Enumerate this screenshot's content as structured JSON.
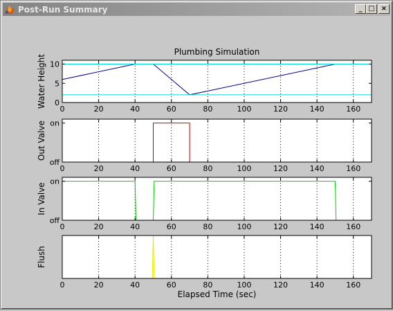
{
  "window": {
    "title": "Post-Run Summary",
    "minimize_label": "_",
    "maximize_label": "□",
    "close_label": "×"
  },
  "colors": {
    "background": "#c8c8c8",
    "axes_bg": "#ffffff",
    "water_line": "#00008b",
    "threshold_line": "#00d8e0",
    "out_valve": "#c00000",
    "in_valve": "#00d000",
    "flush": "#e8e800"
  },
  "chart_data": [
    {
      "type": "line",
      "title": "Plumbing Simulation",
      "xlabel": "",
      "ylabel": "Water Height",
      "xlim": [
        0,
        170
      ],
      "ylim": [
        0,
        11
      ],
      "xticks": [
        0,
        20,
        40,
        60,
        80,
        100,
        120,
        140,
        160
      ],
      "yticks": [
        0,
        5,
        10
      ],
      "xgrid": true,
      "series": [
        {
          "x": [
            0,
            40,
            50,
            70,
            150,
            170
          ],
          "y": [
            6,
            10,
            10,
            2,
            10,
            10
          ],
          "color_key": "water_line"
        },
        {
          "x": [
            0,
            170
          ],
          "y": [
            10,
            10
          ],
          "color_key": "threshold_line"
        },
        {
          "x": [
            0,
            170
          ],
          "y": [
            2,
            2
          ],
          "color_key": "threshold_line"
        }
      ]
    },
    {
      "type": "line",
      "title": "",
      "xlabel": "",
      "ylabel": "Out Valve",
      "xlim": [
        0,
        170
      ],
      "ylim": [
        0,
        1.1
      ],
      "xticks": [
        0,
        20,
        40,
        60,
        80,
        100,
        120,
        140,
        160
      ],
      "yticks": [
        0,
        1
      ],
      "ytick_labels": [
        "off",
        "on"
      ],
      "xgrid": true,
      "series": [
        {
          "x": [
            0,
            50,
            50,
            70,
            70,
            170
          ],
          "y": [
            0,
            0,
            1,
            1,
            0,
            0
          ],
          "color_key": "out_valve"
        }
      ]
    },
    {
      "type": "line",
      "title": "",
      "xlabel": "",
      "ylabel": "In Valve",
      "xlim": [
        0,
        170
      ],
      "ylim": [
        0,
        1.1
      ],
      "xticks": [
        0,
        20,
        40,
        60,
        80,
        100,
        120,
        140,
        160
      ],
      "yticks": [
        0,
        1
      ],
      "ytick_labels": [
        "off",
        "on"
      ],
      "xgrid": true,
      "series": [
        {
          "x": [
            0,
            40,
            40.5,
            50,
            50.5,
            150,
            150.5,
            170
          ],
          "y": [
            1,
            1,
            0,
            0,
            1,
            1,
            0,
            0
          ],
          "color_key": "in_valve"
        }
      ]
    },
    {
      "type": "line",
      "title": "",
      "xlabel": "Elapsed Time (sec)",
      "ylabel": "Flush",
      "xlim": [
        0,
        170
      ],
      "ylim": [
        0,
        1
      ],
      "xticks": [
        0,
        20,
        40,
        60,
        80,
        100,
        120,
        140,
        160
      ],
      "yticks": [
        0,
        1
      ],
      "ytick_labels": [
        "",
        ""
      ],
      "xgrid": true,
      "series": [
        {
          "x": [
            0,
            49.5,
            50,
            50.5,
            170
          ],
          "y": [
            0,
            0,
            1,
            0,
            0
          ],
          "color_key": "flush"
        }
      ]
    }
  ]
}
